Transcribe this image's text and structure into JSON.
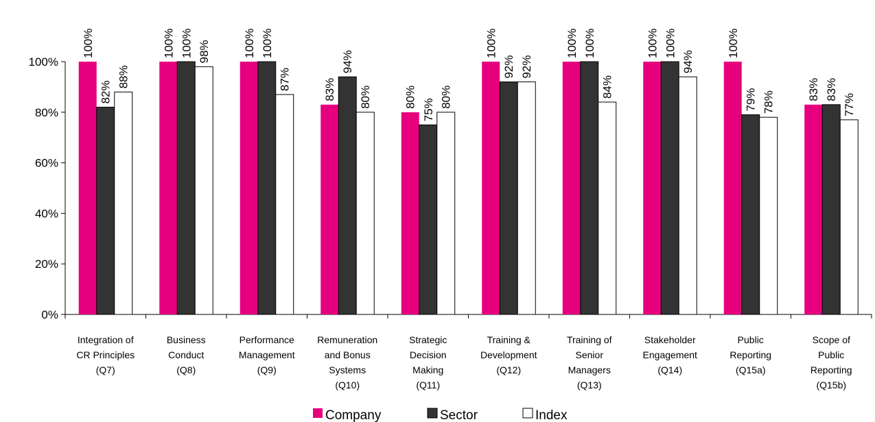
{
  "chart_data": {
    "type": "bar",
    "categories": [
      "Integration of\nCR Principles\n(Q7)",
      "Business\nConduct\n(Q8)",
      "Performance\nManagement\n(Q9)",
      "Remuneration\nand Bonus\nSystems\n(Q10)",
      "Strategic\nDecision\nMaking\n(Q11)",
      "Training &\nDevelopment\n(Q12)",
      "Training of\nSenior\nManagers\n(Q13)",
      "Stakeholder\nEngagement\n(Q14)",
      "Public\nReporting\n(Q15a)",
      "Scope of\nPublic\nReporting\n(Q15b)"
    ],
    "series": [
      {
        "name": "Company",
        "color": "#e6007e",
        "values": [
          100,
          100,
          100,
          83,
          80,
          100,
          100,
          100,
          100,
          83
        ],
        "value_labels": [
          "100%",
          "100%",
          "100%",
          "83%",
          "80%",
          "100%",
          "100%",
          "100%",
          "100%",
          "83%"
        ]
      },
      {
        "name": "Sector",
        "color": "#333333",
        "values": [
          82,
          100,
          100,
          94,
          75,
          92,
          100,
          100,
          79,
          83
        ],
        "value_labels": [
          "82%",
          "100%",
          "100%",
          "94%",
          "75%",
          "92%",
          "100%",
          "100%",
          "79%",
          "83%"
        ]
      },
      {
        "name": "Index",
        "color": "#ffffff",
        "values": [
          88,
          98,
          87,
          80,
          80,
          92,
          84,
          94,
          78,
          77
        ],
        "value_labels": [
          "88%",
          "98%",
          "87%",
          "80%",
          "80%",
          "92%",
          "84%",
          "94%",
          "78%",
          "77%"
        ]
      }
    ],
    "ylim": [
      0,
      100
    ],
    "yticks": [
      {
        "value": 0,
        "label": "0%"
      },
      {
        "value": 20,
        "label": "20%"
      },
      {
        "value": 40,
        "label": "40%"
      },
      {
        "value": 60,
        "label": "60%"
      },
      {
        "value": 80,
        "label": "80%"
      },
      {
        "value": 100,
        "label": "100%"
      }
    ],
    "grid": false,
    "legend": "bottom"
  }
}
